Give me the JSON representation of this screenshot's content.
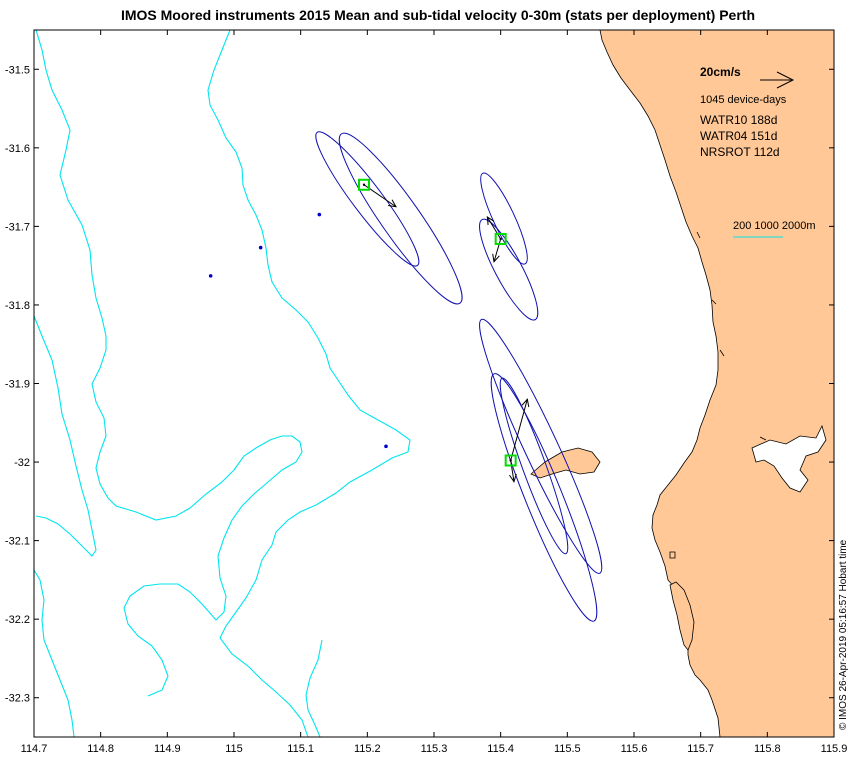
{
  "title": "IMOS Moored instruments 2015 Mean and sub-tidal velocity 0-30m (stats per deployment) Perth",
  "chart_data": {
    "type": "map",
    "xlim": [
      114.7,
      115.9
    ],
    "ylim": [
      -32.35,
      -31.45
    ],
    "x_ticks": [
      {
        "value": 114.7,
        "label": "114.7"
      },
      {
        "value": 114.8,
        "label": "114.8"
      },
      {
        "value": 114.9,
        "label": "114.9"
      },
      {
        "value": 115.0,
        "label": "115"
      },
      {
        "value": 115.1,
        "label": "115.1"
      },
      {
        "value": 115.2,
        "label": "115.2"
      },
      {
        "value": 115.3,
        "label": "115.3"
      },
      {
        "value": 115.4,
        "label": "115.4"
      },
      {
        "value": 115.5,
        "label": "115.5"
      },
      {
        "value": 115.6,
        "label": "115.6"
      },
      {
        "value": 115.7,
        "label": "115.7"
      },
      {
        "value": 115.8,
        "label": "115.8"
      },
      {
        "value": 115.9,
        "label": "115.9"
      }
    ],
    "y_ticks": [
      {
        "value": -31.5,
        "label": "-31.5"
      },
      {
        "value": -31.6,
        "label": "-31.6"
      },
      {
        "value": -31.7,
        "label": "-31.7"
      },
      {
        "value": -31.8,
        "label": "-31.8"
      },
      {
        "value": -31.9,
        "label": "-31.9"
      },
      {
        "value": -32.0,
        "label": "-32"
      },
      {
        "value": -32.1,
        "label": "-32.1"
      },
      {
        "value": -32.2,
        "label": "-32.2"
      },
      {
        "value": -32.3,
        "label": "-32.3"
      }
    ],
    "moorings": [
      {
        "name": "WATR10",
        "lon": 115.195,
        "lat": -31.647,
        "arrow_to": [
          115.243,
          -31.675
        ]
      },
      {
        "name": "WATR04",
        "lon": 115.4,
        "lat": -31.716,
        "arrow_to": [
          115.38,
          -31.688
        ],
        "arrow2_to": [
          115.39,
          -31.745
        ]
      },
      {
        "name": "NRSROT",
        "lon": 115.415,
        "lat": -31.998,
        "arrow_to": [
          115.44,
          -31.92
        ],
        "arrow2_to": [
          115.42,
          -32.025
        ]
      }
    ],
    "ellipses": [
      {
        "lon": 115.2,
        "lat": -31.665,
        "major": 0.125,
        "minor": 0.044,
        "angle_deg": 53
      },
      {
        "lon": 115.25,
        "lat": -31.69,
        "major": 0.155,
        "minor": 0.058,
        "angle_deg": 55
      },
      {
        "lon": 115.405,
        "lat": -31.69,
        "major": 0.075,
        "minor": 0.032,
        "angle_deg": 65
      },
      {
        "lon": 115.412,
        "lat": -31.755,
        "major": 0.085,
        "minor": 0.04,
        "angle_deg": 62
      },
      {
        "lon": 115.46,
        "lat": -31.98,
        "major": 0.21,
        "minor": 0.05,
        "angle_deg": 65
      },
      {
        "lon": 115.465,
        "lat": -32.045,
        "major": 0.2,
        "minor": 0.055,
        "angle_deg": 68
      },
      {
        "lon": 115.45,
        "lat": -32.005,
        "major": 0.14,
        "minor": 0.035,
        "angle_deg": 70
      }
    ],
    "blue_points": [
      {
        "lon": 114.965,
        "lat": -31.763
      },
      {
        "lon": 115.04,
        "lat": -31.727
      },
      {
        "lon": 115.128,
        "lat": -31.685
      },
      {
        "lon": 115.228,
        "lat": -31.98
      }
    ],
    "legend": {
      "scale_label": "20cm/s",
      "device_days": "1045 device-days",
      "entries": [
        "WATR10 188d",
        "WATR04 151d",
        "NRSROT 112d"
      ],
      "isobath_label": "200 1000 2000m"
    },
    "colors": {
      "land": "#FFC896",
      "isobath": "#00E5EE",
      "ellipse": "#1010B0",
      "marker": "#00DD00",
      "point": "#0000CC"
    }
  },
  "stamp": "© IMOS 26-Apr-2019 05:16:57 Hobart time"
}
